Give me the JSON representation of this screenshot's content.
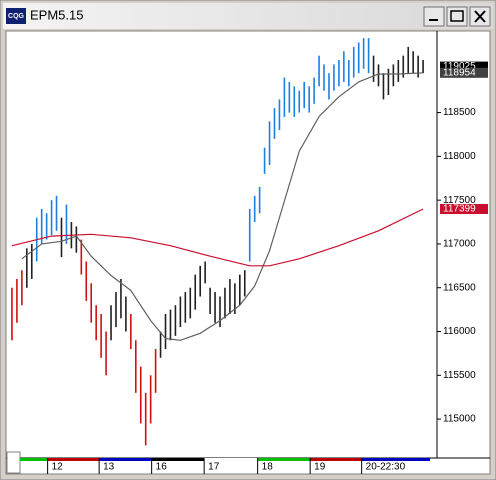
{
  "chart_data": {
    "type": "range_bar",
    "title": "EPM5.15",
    "app_icon": "CQG",
    "high": [
      116500,
      116600,
      116700,
      116950,
      117000,
      117300,
      117400,
      117350,
      117500,
      117550,
      117300,
      117450,
      117250,
      117200,
      117050,
      116800,
      116550,
      116300,
      116200,
      116000,
      116300,
      116450,
      116600,
      116400,
      116200,
      115900,
      115600,
      115300,
      115500,
      115800,
      116000,
      116200,
      116250,
      116300,
      116400,
      116450,
      116500,
      116650,
      116750,
      116800,
      116500,
      116450,
      116400,
      116500,
      116600,
      116550,
      116650,
      116700,
      117400,
      117550,
      117650,
      118100,
      118400,
      118550,
      118650,
      118900,
      118850,
      118800,
      118750,
      118850,
      118800,
      118900,
      119150,
      119050,
      118950,
      119050,
      119100,
      119200,
      119100,
      119250,
      119300,
      119350,
      119350,
      119150,
      119050,
      118950,
      119000,
      119050,
      119100,
      119150,
      119250,
      119200,
      119150,
      119100
    ],
    "low": [
      115900,
      116100,
      116300,
      116500,
      116600,
      116800,
      117000,
      117050,
      117100,
      117150,
      116850,
      117000,
      116950,
      116900,
      116650,
      116350,
      116100,
      115900,
      115700,
      115500,
      115900,
      116050,
      116150,
      116000,
      115800,
      115300,
      114950,
      114700,
      114950,
      115300,
      115700,
      115800,
      115900,
      115950,
      116050,
      116100,
      116150,
      116250,
      116400,
      116550,
      116200,
      116100,
      116050,
      116150,
      116200,
      116200,
      116300,
      116400,
      116800,
      117250,
      117350,
      117800,
      117900,
      118200,
      118300,
      118450,
      118500,
      118450,
      118500,
      118550,
      118500,
      118600,
      118800,
      118750,
      118650,
      118750,
      118800,
      118850,
      118800,
      118900,
      118950,
      119000,
      118950,
      118850,
      118800,
      118650,
      118700,
      118800,
      118850,
      118900,
      118950,
      118950,
      118900,
      118950
    ],
    "colors": [
      "#d01010",
      "#d01010",
      "#d01010",
      "#202020",
      "#202020",
      "#1e7fe0",
      "#1e7fe0",
      "#1e7fe0",
      "#1e7fe0",
      "#1e7fe0",
      "#202020",
      "#1e7fe0",
      "#202020",
      "#202020",
      "#d01010",
      "#d01010",
      "#d01010",
      "#d01010",
      "#d01010",
      "#d01010",
      "#202020",
      "#202020",
      "#202020",
      "#202020",
      "#d01010",
      "#d01010",
      "#d01010",
      "#d01010",
      "#d01010",
      "#d01010",
      "#202020",
      "#202020",
      "#202020",
      "#202020",
      "#202020",
      "#202020",
      "#202020",
      "#202020",
      "#202020",
      "#202020",
      "#202020",
      "#202020",
      "#202020",
      "#202020",
      "#202020",
      "#202020",
      "#202020",
      "#202020",
      "#1e7fe0",
      "#1e7fe0",
      "#1e7fe0",
      "#1e7fe0",
      "#1e7fe0",
      "#1e7fe0",
      "#1e7fe0",
      "#1e7fe0",
      "#1e7fe0",
      "#1e7fe0",
      "#1e7fe0",
      "#1e7fe0",
      "#1e7fe0",
      "#1e7fe0",
      "#1e7fe0",
      "#1e7fe0",
      "#1e7fe0",
      "#1e7fe0",
      "#1e7fe0",
      "#1e7fe0",
      "#1e7fe0",
      "#1e7fe0",
      "#1e7fe0",
      "#1e7fe0",
      "#1e7fe0",
      "#202020",
      "#202020",
      "#202020",
      "#202020",
      "#202020",
      "#202020",
      "#202020",
      "#202020",
      "#202020",
      "#202020",
      "#202020"
    ],
    "lines": [
      {
        "color": "#606060",
        "x": [
          2,
          6,
          10,
          13,
          16,
          20,
          24,
          28,
          31,
          34,
          38,
          42,
          46,
          49,
          52,
          55,
          58,
          62,
          66,
          70,
          74,
          78,
          83
        ],
        "values": [
          116830,
          117000,
          117030,
          117090,
          116860,
          116640,
          116470,
          116125,
          115920,
          115900,
          115980,
          116125,
          116300,
          116520,
          116920,
          117490,
          118060,
          118455,
          118680,
          118850,
          118940,
          118940,
          118954
        ]
      },
      {
        "color": "#c8102e",
        "x": [
          0,
          8,
          16,
          24,
          32,
          40,
          48,
          52,
          58,
          66,
          74,
          83
        ],
        "values": [
          116980,
          117090,
          117110,
          117070,
          116980,
          116860,
          116750,
          116750,
          116830,
          116980,
          117150,
          117399
        ]
      }
    ],
    "price_labels": [
      {
        "value": 119025,
        "color": "#000000"
      },
      {
        "value": 118954,
        "color": "#404040"
      },
      {
        "value": 117399,
        "color": "#c8102e"
      }
    ],
    "xlim": [
      -0.8,
      84.8
    ],
    "ylim": [
      114590,
      119420
    ],
    "yticks": [
      115000,
      115500,
      116000,
      116500,
      117000,
      117500,
      118000,
      118500
    ],
    "xticks": [
      {
        "value": 7.2,
        "label": "12"
      },
      {
        "value": 17.6,
        "label": "13"
      },
      {
        "value": 28.2,
        "label": "16"
      },
      {
        "value": 38.8,
        "label": "17"
      },
      {
        "value": 49.6,
        "label": "18"
      },
      {
        "value": 60.2,
        "label": "19"
      },
      {
        "value": 70.6,
        "label": "20-22:30"
      }
    ]
  }
}
